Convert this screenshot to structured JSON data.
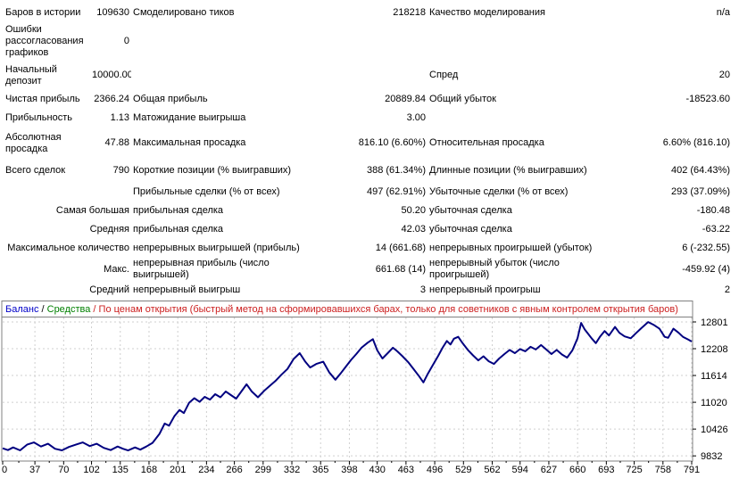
{
  "report": {
    "rows": [
      {
        "prefixed": false,
        "c": [
          "Баров в истории",
          "109630",
          "Смоделировано тиков",
          "218218",
          "Качество моделирования",
          "n/a"
        ]
      },
      {
        "prefixed": false,
        "c": [
          "Ошибки рассогласования графиков",
          "0",
          "",
          "",
          "",
          ""
        ]
      },
      {
        "prefixed": false,
        "c": [
          "Начальный депозит",
          "10000.00",
          "",
          "",
          "Спред",
          "20"
        ]
      },
      {
        "prefixed": false,
        "c": [
          "Чистая прибыль",
          "2366.24",
          "Общая прибыль",
          "20889.84",
          "Общий убыток",
          "-18523.60"
        ]
      },
      {
        "prefixed": false,
        "c": [
          "Прибыльность",
          "1.13",
          "Матожидание выигрыша",
          "3.00",
          "",
          ""
        ]
      },
      {
        "prefixed": false,
        "c": [
          "Абсолютная просадка",
          "47.88",
          "Максимальная просадка",
          "816.10 (6.60%)",
          "Относительная просадка",
          "6.60% (816.10)"
        ]
      },
      {
        "prefixed": false,
        "c": [
          "Всего сделок",
          "790",
          "Короткие позиции (% выигравших)",
          "388 (61.34%)",
          "Длинные позиции (% выигравших)",
          "402 (64.43%)"
        ]
      },
      {
        "prefixed": false,
        "c": [
          "",
          "",
          "Прибыльные сделки (% от всех)",
          "497 (62.91%)",
          "Убыточные сделки (% от всех)",
          "293 (37.09%)"
        ]
      },
      {
        "prefixed": true,
        "c": [
          "Самая большая",
          "",
          "прибыльная сделка",
          "50.20",
          "убыточная сделка",
          "-180.48"
        ]
      },
      {
        "prefixed": true,
        "c": [
          "Средняя",
          "",
          "прибыльная сделка",
          "42.03",
          "убыточная сделка",
          "-63.22"
        ]
      },
      {
        "prefixed": true,
        "c": [
          "Максимальное количество",
          "",
          "непрерывных выигрышей (прибыль)",
          "14 (661.68)",
          "непрерывных проигрышей (убыток)",
          "6 (-232.55)"
        ]
      },
      {
        "prefixed": true,
        "c": [
          "Макс.",
          "",
          "непрерывная прибыль (число выигрышей)",
          "661.68 (14)",
          "непрерывный убыток (число проигрышей)",
          "-459.92 (4)"
        ]
      },
      {
        "prefixed": true,
        "c": [
          "Средний",
          "",
          "непрерывный выигрыш",
          "3",
          "непрерывный проигрыш",
          "2"
        ]
      }
    ]
  },
  "chart": {
    "legend": {
      "balance_label": "Баланс",
      "separator": " / ",
      "equity_label": "Средства",
      "note": "По ценам открытия (быстрый метод на сформировавшихся барах, только для советников с явным контролем открытия баров)"
    },
    "colors": {
      "balance_line": "#000080",
      "grid": "#cfcfcf",
      "border": "#808080",
      "legend_balance": "#0000C8",
      "legend_separator": "#000000",
      "legend_equity": "#008000",
      "legend_note": "#CC2020",
      "axis_text": "#000000",
      "background": "#ffffff"
    }
  },
  "chart_data": {
    "type": "line",
    "title": "",
    "xlabel": "",
    "ylabel": "",
    "grid": "dashed",
    "legend_position": "top-left",
    "x_ticks": [
      0,
      37,
      70,
      102,
      135,
      168,
      201,
      234,
      266,
      299,
      332,
      365,
      398,
      430,
      463,
      496,
      529,
      562,
      594,
      627,
      660,
      693,
      725,
      758,
      791
    ],
    "y_ticks": [
      12801,
      12208,
      11614,
      11020,
      10426,
      9832
    ],
    "xlim": [
      0,
      791
    ],
    "ylim": [
      9717,
      12900
    ],
    "series": [
      {
        "name": "Баланс",
        "points": [
          [
            0,
            10000
          ],
          [
            6,
            9960
          ],
          [
            12,
            10020
          ],
          [
            20,
            9955
          ],
          [
            28,
            10080
          ],
          [
            36,
            10130
          ],
          [
            44,
            10040
          ],
          [
            52,
            10100
          ],
          [
            60,
            9990
          ],
          [
            68,
            9955
          ],
          [
            76,
            10030
          ],
          [
            84,
            10080
          ],
          [
            92,
            10130
          ],
          [
            100,
            10050
          ],
          [
            108,
            10100
          ],
          [
            116,
            10010
          ],
          [
            124,
            9960
          ],
          [
            132,
            10040
          ],
          [
            138,
            9990
          ],
          [
            144,
            9952
          ],
          [
            152,
            10020
          ],
          [
            158,
            9970
          ],
          [
            165,
            10040
          ],
          [
            172,
            10120
          ],
          [
            180,
            10320
          ],
          [
            186,
            10550
          ],
          [
            191,
            10500
          ],
          [
            197,
            10710
          ],
          [
            203,
            10850
          ],
          [
            208,
            10780
          ],
          [
            214,
            11010
          ],
          [
            220,
            11110
          ],
          [
            226,
            11030
          ],
          [
            232,
            11140
          ],
          [
            238,
            11080
          ],
          [
            244,
            11200
          ],
          [
            250,
            11130
          ],
          [
            256,
            11260
          ],
          [
            262,
            11180
          ],
          [
            268,
            11100
          ],
          [
            274,
            11260
          ],
          [
            280,
            11420
          ],
          [
            286,
            11260
          ],
          [
            293,
            11130
          ],
          [
            300,
            11270
          ],
          [
            307,
            11390
          ],
          [
            313,
            11490
          ],
          [
            320,
            11630
          ],
          [
            327,
            11760
          ],
          [
            334,
            11980
          ],
          [
            341,
            12110
          ],
          [
            347,
            11930
          ],
          [
            353,
            11790
          ],
          [
            360,
            11870
          ],
          [
            368,
            11920
          ],
          [
            375,
            11680
          ],
          [
            382,
            11520
          ],
          [
            388,
            11660
          ],
          [
            394,
            11810
          ],
          [
            400,
            11960
          ],
          [
            406,
            12090
          ],
          [
            412,
            12230
          ],
          [
            419,
            12340
          ],
          [
            425,
            12420
          ],
          [
            430,
            12170
          ],
          [
            436,
            11990
          ],
          [
            442,
            12110
          ],
          [
            448,
            12230
          ],
          [
            453,
            12150
          ],
          [
            459,
            12040
          ],
          [
            466,
            11900
          ],
          [
            472,
            11750
          ],
          [
            478,
            11600
          ],
          [
            483,
            11460
          ],
          [
            488,
            11650
          ],
          [
            494,
            11850
          ],
          [
            500,
            12050
          ],
          [
            505,
            12230
          ],
          [
            510,
            12380
          ],
          [
            514,
            12300
          ],
          [
            518,
            12430
          ],
          [
            523,
            12470
          ],
          [
            528,
            12330
          ],
          [
            534,
            12180
          ],
          [
            540,
            12060
          ],
          [
            546,
            11950
          ],
          [
            552,
            12040
          ],
          [
            558,
            11930
          ],
          [
            564,
            11870
          ],
          [
            570,
            11990
          ],
          [
            576,
            12090
          ],
          [
            582,
            12180
          ],
          [
            588,
            12110
          ],
          [
            594,
            12200
          ],
          [
            600,
            12150
          ],
          [
            606,
            12250
          ],
          [
            612,
            12190
          ],
          [
            618,
            12290
          ],
          [
            624,
            12190
          ],
          [
            630,
            12090
          ],
          [
            636,
            12180
          ],
          [
            642,
            12080
          ],
          [
            648,
            12010
          ],
          [
            654,
            12170
          ],
          [
            660,
            12440
          ],
          [
            664,
            12780
          ],
          [
            668,
            12640
          ],
          [
            672,
            12540
          ],
          [
            676,
            12440
          ],
          [
            681,
            12330
          ],
          [
            686,
            12480
          ],
          [
            691,
            12600
          ],
          [
            696,
            12500
          ],
          [
            703,
            12690
          ],
          [
            708,
            12560
          ],
          [
            714,
            12480
          ],
          [
            721,
            12440
          ],
          [
            727,
            12550
          ],
          [
            733,
            12660
          ],
          [
            741,
            12800
          ],
          [
            747,
            12740
          ],
          [
            754,
            12650
          ],
          [
            760,
            12470
          ],
          [
            764,
            12450
          ],
          [
            770,
            12650
          ],
          [
            776,
            12560
          ],
          [
            781,
            12470
          ],
          [
            787,
            12410
          ],
          [
            791,
            12366
          ]
        ]
      }
    ]
  }
}
